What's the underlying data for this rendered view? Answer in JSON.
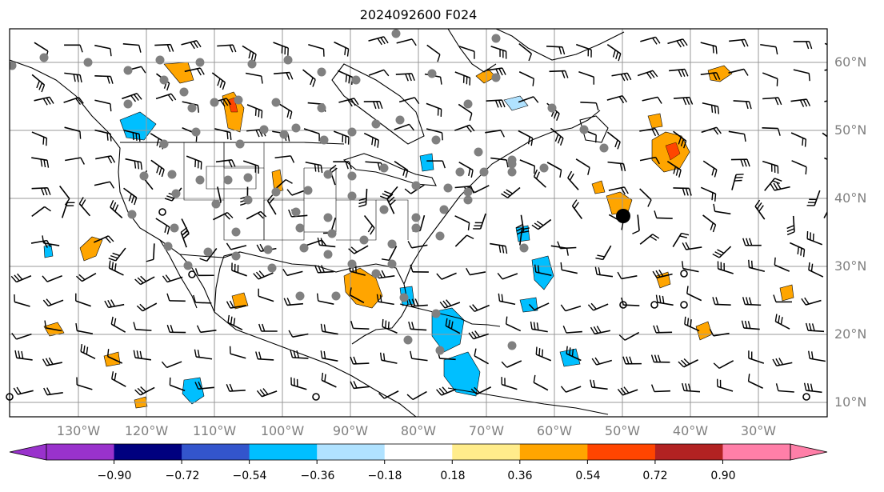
{
  "title": "2024092600 F024",
  "map": {
    "projection": "PlateCarree",
    "lon_range": [
      -139,
      -22
    ],
    "lat_range": [
      8,
      65
    ],
    "latitude_labels": [
      "60°N",
      "50°N",
      "40°N",
      "30°N",
      "20°N",
      "10°N"
    ],
    "longitude_labels": [
      "130°W",
      "120°W",
      "110°W",
      "100°W",
      "90°W",
      "80°W",
      "70°W",
      "60°W",
      "50°W",
      "40°W",
      "30°W"
    ],
    "gridlines": true,
    "wind_barbs": true,
    "station_markers": "gray-dots"
  },
  "colorbar": {
    "orientation": "horizontal",
    "extend": "both",
    "ticks": [
      "−0.90",
      "−0.72",
      "−0.54",
      "−0.36",
      "−0.18",
      "0.18",
      "0.36",
      "0.54",
      "0.72",
      "0.90"
    ],
    "colors": [
      "#9932cc",
      "#00007f",
      "#3355cc",
      "#00bfff",
      "#b0e2ff",
      "#ffffff",
      "#ffec8b",
      "#ffa500",
      "#ff4500",
      "#b22222",
      "#ff7fa8"
    ]
  }
}
